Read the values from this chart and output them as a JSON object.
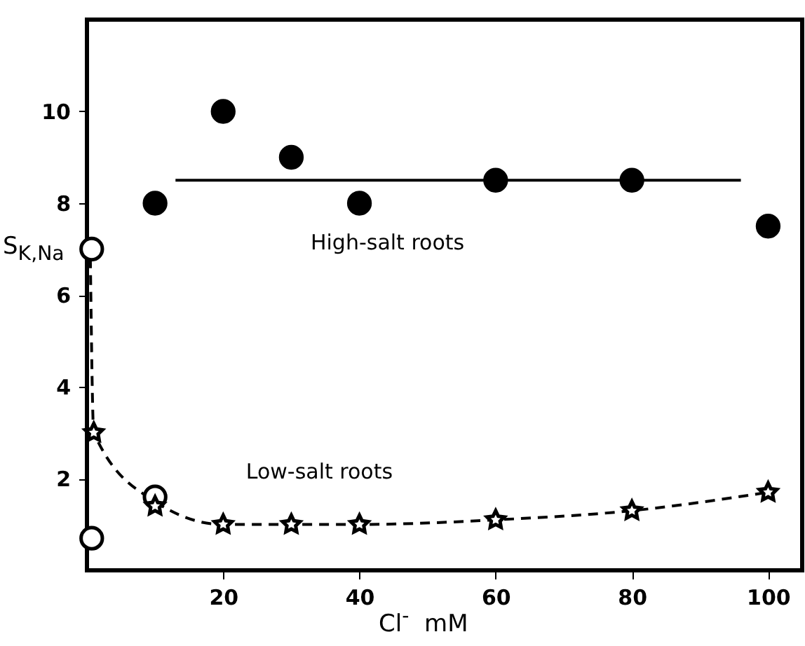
{
  "chart_data": {
    "type": "scatter",
    "xlabel": "Cl$^{-}$  mM",
    "ylabel": "S$_{K,Na}$",
    "xlim": [
      0,
      105
    ],
    "ylim": [
      0,
      12
    ],
    "xticks": [
      20,
      40,
      60,
      80,
      100
    ],
    "yticks": [
      2,
      4,
      6,
      8,
      10
    ],
    "grid": false,
    "series": [
      {
        "type": "line",
        "color": "#000000",
        "line_style": "solid",
        "marker": "none",
        "x": [
          13,
          96
        ],
        "values": [
          8.5,
          8.5
        ]
      },
      {
        "type": "line",
        "color": "#000000",
        "line_style": "dashed",
        "marker": "none",
        "x": [
          0.5,
          1,
          10,
          20,
          30,
          40,
          60,
          80,
          100
        ],
        "values": [
          6.8,
          3,
          1.5,
          1,
          1,
          1,
          1.1,
          1.3,
          1.7
        ]
      },
      {
        "name": "High-salt roots",
        "color": "#000000",
        "marker": "circle",
        "x": [
          10,
          20,
          30,
          40,
          60,
          80,
          100
        ],
        "values": [
          8,
          10,
          9,
          8,
          8.5,
          8.5,
          7.5
        ]
      },
      {
        "color": "#ffffff",
        "marker": "circle",
        "x": [
          0.7,
          0.7,
          10
        ],
        "values": [
          7,
          0.7,
          1.6
        ]
      },
      {
        "name": "Low-salt roots",
        "color": "#ffffff",
        "marker": "star",
        "x": [
          1,
          10,
          20,
          30,
          40,
          60,
          80,
          100
        ],
        "values": [
          3,
          1.4,
          1,
          1,
          1,
          1.1,
          1.3,
          1.7
        ]
      }
    ]
  }
}
